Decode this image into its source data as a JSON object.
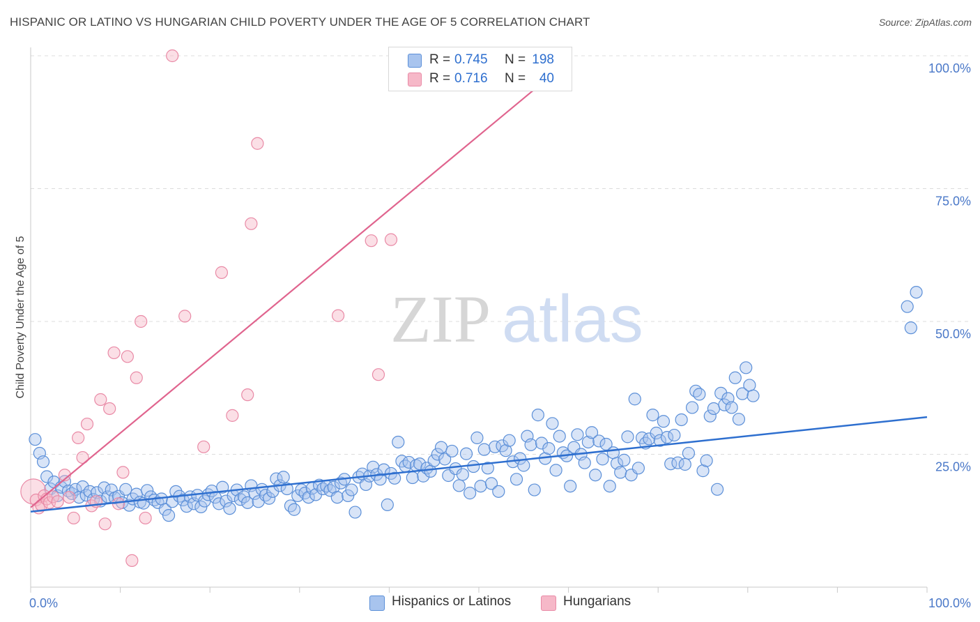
{
  "title": "HISPANIC OR LATINO VS HUNGARIAN CHILD POVERTY UNDER THE AGE OF 5 CORRELATION CHART",
  "source": "Source: ZipAtlas.com",
  "watermark": {
    "zip": "ZIP",
    "atlas": "atlas"
  },
  "legend": {
    "rows": [
      {
        "r_label": "R =",
        "r_value": "0.745",
        "n_label": "N =",
        "n_value": "198",
        "color": "#a8c4ee"
      },
      {
        "r_label": "R =",
        "r_value": "0.716",
        "n_label": "N =",
        "n_value": "40",
        "color": "#f6b8c8"
      }
    ]
  },
  "bottom_legend": [
    {
      "label": "Hispanics or Latinos",
      "color": "#a8c4ee"
    },
    {
      "label": "Hungarians",
      "color": "#f6b8c8"
    }
  ],
  "colors": {
    "blue_stroke": "#5b8fd8",
    "blue_line": "#2e6fcf",
    "pink_stroke": "#e98aa6",
    "pink_line": "#e0648e",
    "tick_text": "#4a78c8"
  },
  "chart_data": {
    "type": "scatter",
    "title": "HISPANIC OR LATINO VS HUNGARIAN CHILD POVERTY UNDER THE AGE OF 5 CORRELATION CHART",
    "xlabel": "",
    "ylabel": "Child Poverty Under the Age of 5",
    "xlim": [
      0,
      100
    ],
    "ylim": [
      0,
      100
    ],
    "x_ticks": [
      "0.0%",
      "100.0%"
    ],
    "y_ticks": [
      {
        "value": 25,
        "label": "25.0%"
      },
      {
        "value": 50,
        "label": "50.0%"
      },
      {
        "value": 75,
        "label": "75.0%"
      },
      {
        "value": 100,
        "label": "100.0%"
      }
    ],
    "grid": "horizontal dashed",
    "legend_placement": "top-center",
    "series": [
      {
        "name": "Hispanics or Latinos",
        "color": "#a8c4ee",
        "trend": {
          "x0": 0,
          "y0": 14.2,
          "x1": 100,
          "y1": 32.0
        },
        "points": [
          [
            0.5,
            27.8
          ],
          [
            1.0,
            25.2
          ],
          [
            1.4,
            23.6
          ],
          [
            1.8,
            20.8
          ],
          [
            2.2,
            18.5
          ],
          [
            2.6,
            19.8
          ],
          [
            3.0,
            17.2
          ],
          [
            3.4,
            18.8
          ],
          [
            3.8,
            19.9
          ],
          [
            4.2,
            18.1
          ],
          [
            4.6,
            17.6
          ],
          [
            5.0,
            18.4
          ],
          [
            5.4,
            16.9
          ],
          [
            5.8,
            18.9
          ],
          [
            6.2,
            17.3
          ],
          [
            6.6,
            18.0
          ],
          [
            7.0,
            16.5
          ],
          [
            7.4,
            17.8
          ],
          [
            7.8,
            16.2
          ],
          [
            8.2,
            18.7
          ],
          [
            8.6,
            17.0
          ],
          [
            9.0,
            18.3
          ],
          [
            9.4,
            16.8
          ],
          [
            9.8,
            17.1
          ],
          [
            10.2,
            15.9
          ],
          [
            10.6,
            18.4
          ],
          [
            11.0,
            15.4
          ],
          [
            11.4,
            16.6
          ],
          [
            11.8,
            17.5
          ],
          [
            12.2,
            16.0
          ],
          [
            12.6,
            15.8
          ],
          [
            13.0,
            18.2
          ],
          [
            13.4,
            17.0
          ],
          [
            13.8,
            16.4
          ],
          [
            14.2,
            15.9
          ],
          [
            14.6,
            16.6
          ],
          [
            15.0,
            14.6
          ],
          [
            15.4,
            13.5
          ],
          [
            15.8,
            16.1
          ],
          [
            16.2,
            18.0
          ],
          [
            16.6,
            17.1
          ],
          [
            17.0,
            16.4
          ],
          [
            17.4,
            15.2
          ],
          [
            17.8,
            17.0
          ],
          [
            18.2,
            15.7
          ],
          [
            18.6,
            17.3
          ],
          [
            19.0,
            15.1
          ],
          [
            19.4,
            16.2
          ],
          [
            19.8,
            17.4
          ],
          [
            20.2,
            18.1
          ],
          [
            20.6,
            16.9
          ],
          [
            21.0,
            15.7
          ],
          [
            21.4,
            18.8
          ],
          [
            21.8,
            16.2
          ],
          [
            22.2,
            14.8
          ],
          [
            22.6,
            17.2
          ],
          [
            23.0,
            18.3
          ],
          [
            23.4,
            16.5
          ],
          [
            23.8,
            17.0
          ],
          [
            24.2,
            15.9
          ],
          [
            24.6,
            19.1
          ],
          [
            25.0,
            17.6
          ],
          [
            25.4,
            16.1
          ],
          [
            25.8,
            18.4
          ],
          [
            26.2,
            17.3
          ],
          [
            26.6,
            16.7
          ],
          [
            27.0,
            18.0
          ],
          [
            27.4,
            20.4
          ],
          [
            27.8,
            19.1
          ],
          [
            28.2,
            20.7
          ],
          [
            28.6,
            18.5
          ],
          [
            29.0,
            15.3
          ],
          [
            29.4,
            14.6
          ],
          [
            29.8,
            17.2
          ],
          [
            30.2,
            18.3
          ],
          [
            30.6,
            17.7
          ],
          [
            31.0,
            16.9
          ],
          [
            31.4,
            18.6
          ],
          [
            31.8,
            17.4
          ],
          [
            32.2,
            19.2
          ],
          [
            32.6,
            18.5
          ],
          [
            33.0,
            19.0
          ],
          [
            33.4,
            18.2
          ],
          [
            33.8,
            18.8
          ],
          [
            34.2,
            16.9
          ],
          [
            34.6,
            19.6
          ],
          [
            35.0,
            20.3
          ],
          [
            35.4,
            17.2
          ],
          [
            35.8,
            18.3
          ],
          [
            36.2,
            14.1
          ],
          [
            36.6,
            20.7
          ],
          [
            37.0,
            21.3
          ],
          [
            37.4,
            19.3
          ],
          [
            37.8,
            20.9
          ],
          [
            38.2,
            22.6
          ],
          [
            38.6,
            21.2
          ],
          [
            39.0,
            20.3
          ],
          [
            39.4,
            22.1
          ],
          [
            39.8,
            15.5
          ],
          [
            40.2,
            21.4
          ],
          [
            40.6,
            20.5
          ],
          [
            41.0,
            27.3
          ],
          [
            41.4,
            23.7
          ],
          [
            41.8,
            22.8
          ],
          [
            42.2,
            23.5
          ],
          [
            42.6,
            20.6
          ],
          [
            43.0,
            22.9
          ],
          [
            43.4,
            23.2
          ],
          [
            43.8,
            20.9
          ],
          [
            44.2,
            22.4
          ],
          [
            44.6,
            21.8
          ],
          [
            45.0,
            23.8
          ],
          [
            45.4,
            25.0
          ],
          [
            45.8,
            26.3
          ],
          [
            46.2,
            24.1
          ],
          [
            46.6,
            21.0
          ],
          [
            47.0,
            25.6
          ],
          [
            47.4,
            22.3
          ],
          [
            47.8,
            19.1
          ],
          [
            48.2,
            21.2
          ],
          [
            48.6,
            25.1
          ],
          [
            49.0,
            17.7
          ],
          [
            49.4,
            22.7
          ],
          [
            49.8,
            28.1
          ],
          [
            50.2,
            19.0
          ],
          [
            50.6,
            25.9
          ],
          [
            51.0,
            22.4
          ],
          [
            51.4,
            19.5
          ],
          [
            51.8,
            26.4
          ],
          [
            52.2,
            18.0
          ],
          [
            52.6,
            26.6
          ],
          [
            53.0,
            25.7
          ],
          [
            53.4,
            27.6
          ],
          [
            53.8,
            23.6
          ],
          [
            54.2,
            20.3
          ],
          [
            54.6,
            24.2
          ],
          [
            55.0,
            22.9
          ],
          [
            55.4,
            28.4
          ],
          [
            55.8,
            26.8
          ],
          [
            56.2,
            18.3
          ],
          [
            56.6,
            32.4
          ],
          [
            57.0,
            27.1
          ],
          [
            57.4,
            24.2
          ],
          [
            57.8,
            26.1
          ],
          [
            58.2,
            30.8
          ],
          [
            58.6,
            22.0
          ],
          [
            59.0,
            28.4
          ],
          [
            59.4,
            25.3
          ],
          [
            59.8,
            24.7
          ],
          [
            60.2,
            19.0
          ],
          [
            60.6,
            26.3
          ],
          [
            61.0,
            28.7
          ],
          [
            61.4,
            25.0
          ],
          [
            61.8,
            23.4
          ],
          [
            62.2,
            27.3
          ],
          [
            62.6,
            29.1
          ],
          [
            63.0,
            21.1
          ],
          [
            63.4,
            27.5
          ],
          [
            63.8,
            24.1
          ],
          [
            64.2,
            26.9
          ],
          [
            64.6,
            19.0
          ],
          [
            65.0,
            25.3
          ],
          [
            65.4,
            23.3
          ],
          [
            65.8,
            21.6
          ],
          [
            66.2,
            23.9
          ],
          [
            66.6,
            28.3
          ],
          [
            67.0,
            21.1
          ],
          [
            67.4,
            35.4
          ],
          [
            67.8,
            22.4
          ],
          [
            68.2,
            28.1
          ],
          [
            68.6,
            27.1
          ],
          [
            69.0,
            27.9
          ],
          [
            69.4,
            32.4
          ],
          [
            69.8,
            29.0
          ],
          [
            70.2,
            27.6
          ],
          [
            70.6,
            31.2
          ],
          [
            71.0,
            28.2
          ],
          [
            71.4,
            23.2
          ],
          [
            71.8,
            28.6
          ],
          [
            72.2,
            23.4
          ],
          [
            72.6,
            31.5
          ],
          [
            73.0,
            23.1
          ],
          [
            73.4,
            25.2
          ],
          [
            73.8,
            33.8
          ],
          [
            74.2,
            36.9
          ],
          [
            74.6,
            36.3
          ],
          [
            75.0,
            21.9
          ],
          [
            75.4,
            23.8
          ],
          [
            75.8,
            32.2
          ],
          [
            76.2,
            33.6
          ],
          [
            76.6,
            18.4
          ],
          [
            77.0,
            36.5
          ],
          [
            77.4,
            34.3
          ],
          [
            77.8,
            35.5
          ],
          [
            78.2,
            33.8
          ],
          [
            78.6,
            39.4
          ],
          [
            79.0,
            31.6
          ],
          [
            79.4,
            36.4
          ],
          [
            79.8,
            41.3
          ],
          [
            80.2,
            38.0
          ],
          [
            80.6,
            36.0
          ],
          [
            97.8,
            52.8
          ],
          [
            98.2,
            48.8
          ],
          [
            98.8,
            55.5
          ]
        ]
      },
      {
        "name": "Hungarians",
        "color": "#f6b8c8",
        "trend": {
          "x0": 0,
          "y0": 15.0,
          "x1": 60,
          "y1": 99.0
        },
        "points": [
          [
            0.3,
            18.0
          ],
          [
            0.6,
            16.4
          ],
          [
            0.9,
            14.9
          ],
          [
            1.2,
            15.4
          ],
          [
            1.5,
            17.2
          ],
          [
            1.8,
            16.6
          ],
          [
            2.1,
            15.9
          ],
          [
            2.5,
            17.0
          ],
          [
            3.0,
            16.1
          ],
          [
            3.8,
            21.1
          ],
          [
            4.3,
            16.9
          ],
          [
            4.8,
            13.0
          ],
          [
            5.3,
            28.1
          ],
          [
            5.8,
            24.4
          ],
          [
            6.3,
            30.7
          ],
          [
            6.8,
            15.3
          ],
          [
            7.3,
            16.1
          ],
          [
            7.8,
            35.3
          ],
          [
            8.3,
            11.9
          ],
          [
            8.8,
            33.6
          ],
          [
            9.3,
            44.1
          ],
          [
            9.8,
            15.7
          ],
          [
            10.3,
            21.6
          ],
          [
            10.8,
            43.4
          ],
          [
            11.3,
            5.0
          ],
          [
            11.8,
            39.4
          ],
          [
            12.3,
            50.0
          ],
          [
            12.8,
            13.0
          ],
          [
            15.8,
            100.0
          ],
          [
            17.2,
            51.0
          ],
          [
            19.3,
            26.4
          ],
          [
            21.3,
            59.2
          ],
          [
            22.5,
            32.3
          ],
          [
            24.2,
            36.2
          ],
          [
            24.6,
            68.4
          ],
          [
            25.3,
            83.5
          ],
          [
            34.3,
            51.1
          ],
          [
            38.0,
            65.2
          ],
          [
            38.8,
            40.0
          ],
          [
            40.2,
            65.4
          ]
        ]
      }
    ]
  },
  "axis": {
    "y_label": "Child Poverty Under the Age of 5",
    "x_min_label": "0.0%",
    "x_max_label": "100.0%"
  }
}
